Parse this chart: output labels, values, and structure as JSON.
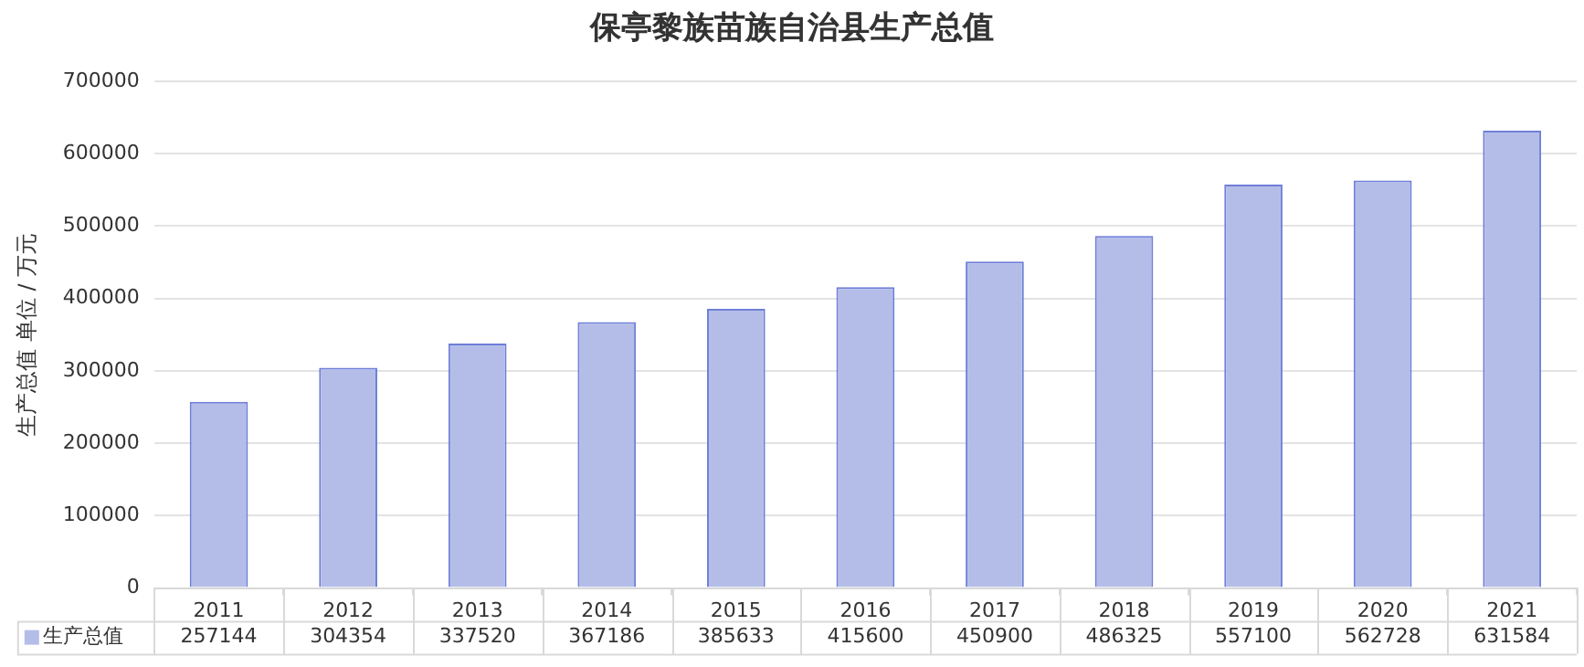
{
  "chart_data": {
    "type": "bar",
    "title": "保亭黎族苗族自治县生产总值",
    "ylabel": "生产总值 单位 / 万元",
    "categories": [
      "2011",
      "2012",
      "2013",
      "2014",
      "2015",
      "2016",
      "2017",
      "2018",
      "2019",
      "2020",
      "2021"
    ],
    "series": [
      {
        "name": "生产总值",
        "color": "#b4bde8",
        "values": [
          257144,
          304354,
          337520,
          367186,
          385633,
          415600,
          450900,
          486325,
          557100,
          562728,
          631584
        ]
      }
    ],
    "ylim": [
      0,
      700000
    ],
    "yticks": [
      0,
      100000,
      200000,
      300000,
      400000,
      500000,
      600000,
      700000
    ],
    "grid": "y",
    "legend": "bottom",
    "data_labels": true
  }
}
